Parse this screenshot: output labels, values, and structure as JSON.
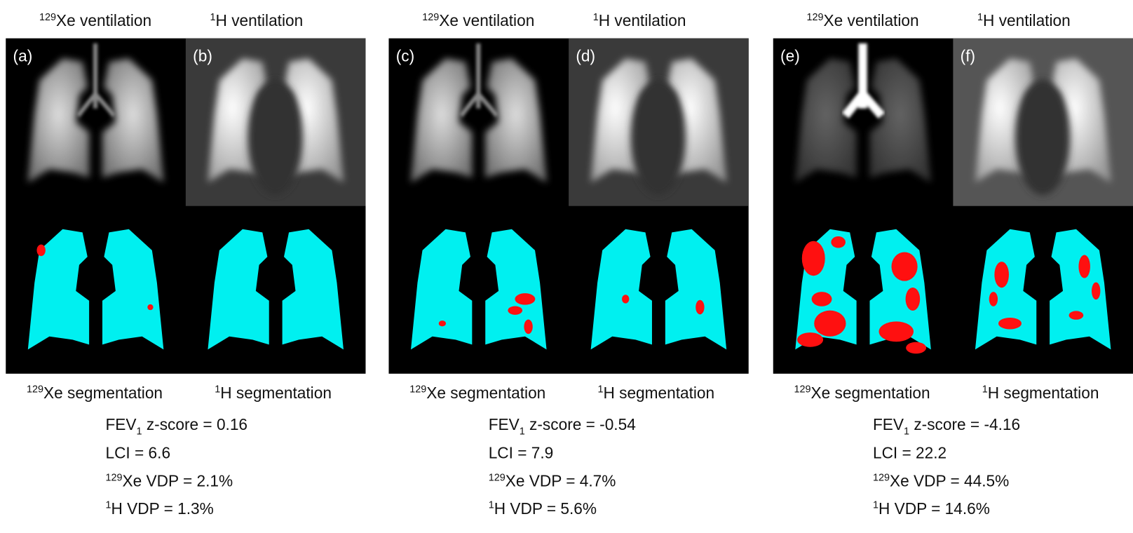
{
  "panels": [
    {
      "columns": [
        {
          "letter": "(a)",
          "title_sup": "129",
          "title": "Xe ventilation",
          "seg_sup": "129",
          "seg": "Xe segmentation"
        },
        {
          "letter": "(b)",
          "title_sup": "1",
          "title": "H ventilation",
          "seg_sup": "1",
          "seg": "H segmentation"
        }
      ],
      "stats": {
        "fev1": {
          "name": "FEV",
          "sub": "1",
          "label": " z-score = ",
          "value": 0.16
        },
        "lci": {
          "label": "LCI = ",
          "value": 6.6
        },
        "xe_vdp": {
          "sup": "129",
          "label": "Xe VDP = ",
          "value": "2.1%"
        },
        "h_vdp": {
          "sup": "1",
          "label": "H VDP = ",
          "value": "1.3%"
        }
      }
    },
    {
      "columns": [
        {
          "letter": "(c)",
          "title_sup": "129",
          "title": "Xe ventilation",
          "seg_sup": "129",
          "seg": "Xe segmentation"
        },
        {
          "letter": "(d)",
          "title_sup": "1",
          "title": "H ventilation",
          "seg_sup": "1",
          "seg": "H segmentation"
        }
      ],
      "stats": {
        "fev1": {
          "name": "FEV",
          "sub": "1",
          "label": " z-score = ",
          "value": -0.54
        },
        "lci": {
          "label": "LCI = ",
          "value": 7.9
        },
        "xe_vdp": {
          "sup": "129",
          "label": "Xe VDP = ",
          "value": "4.7%"
        },
        "h_vdp": {
          "sup": "1",
          "label": "H VDP = ",
          "value": "5.6%"
        }
      }
    },
    {
      "columns": [
        {
          "letter": "(e)",
          "title_sup": "129",
          "title": "Xe ventilation",
          "seg_sup": "129",
          "seg": "Xe segmentation"
        },
        {
          "letter": "(f)",
          "title_sup": "1",
          "title": "H ventilation",
          "seg_sup": "1",
          "seg": "H segmentation"
        }
      ],
      "stats": {
        "fev1": {
          "name": "FEV",
          "sub": "1",
          "label": " z-score = ",
          "value": -4.16
        },
        "lci": {
          "label": "LCI = ",
          "value": 22.2
        },
        "xe_vdp": {
          "sup": "129",
          "label": "Xe VDP = ",
          "value": "44.5%"
        },
        "h_vdp": {
          "sup": "1",
          "label": "H VDP = ",
          "value": "14.6%"
        }
      }
    }
  ]
}
